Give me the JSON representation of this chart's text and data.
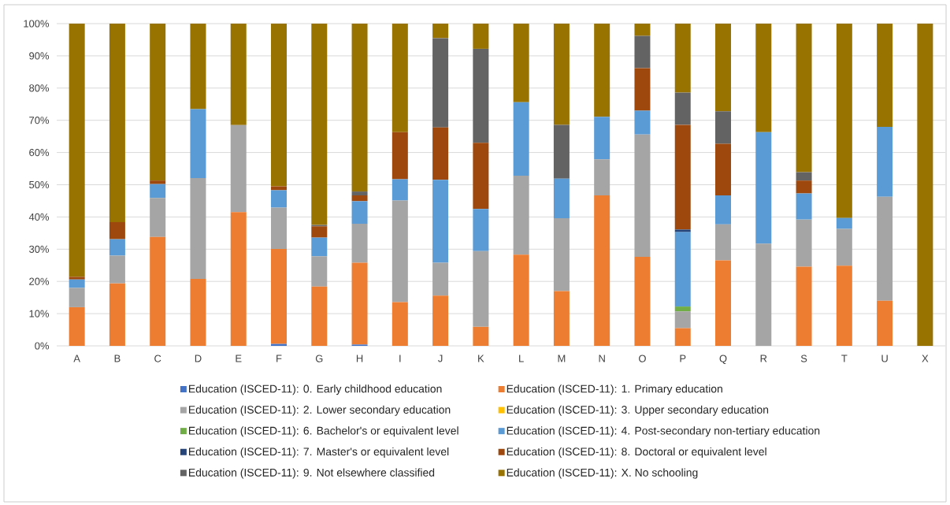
{
  "chart_data": {
    "type": "bar",
    "stacked": true,
    "categories": [
      "A",
      "B",
      "C",
      "D",
      "E",
      "F",
      "G",
      "H",
      "I",
      "J",
      "K",
      "L",
      "M",
      "N",
      "O",
      "P",
      "Q",
      "R",
      "S",
      "T",
      "U",
      "X"
    ],
    "ylim": [
      0,
      100
    ],
    "yticks": [
      {
        "value": 0,
        "label": "0%"
      },
      {
        "value": 10,
        "label": "10%"
      },
      {
        "value": 20,
        "label": "20%"
      },
      {
        "value": 30,
        "label": "30%"
      },
      {
        "value": 40,
        "label": "40%"
      },
      {
        "value": 50,
        "label": "50%"
      },
      {
        "value": 60,
        "label": "60%"
      },
      {
        "value": 70,
        "label": "70%"
      },
      {
        "value": 80,
        "label": "80%"
      },
      {
        "value": 90,
        "label": "90%"
      },
      {
        "value": 100,
        "label": "100%"
      }
    ],
    "grid": "y",
    "legend": "bottom",
    "series": [
      {
        "name": "Education (ISCED-11): 0. Early childhood education",
        "color": "#4472c4",
        "values": [
          0,
          0,
          0,
          0,
          0,
          0.6,
          0,
          0.4,
          0,
          0,
          0,
          0,
          0,
          0,
          0,
          0,
          0,
          0,
          0,
          0,
          0,
          0
        ]
      },
      {
        "name": "Education (ISCED-11): 1. Primary education",
        "color": "#ed7d31",
        "values": [
          12.0,
          19.4,
          33.8,
          20.8,
          41.5,
          29.5,
          18.4,
          25.4,
          13.6,
          15.6,
          5.9,
          28.3,
          17.0,
          46.7,
          27.6,
          5.5,
          26.5,
          0,
          24.6,
          24.9,
          14.0,
          0
        ]
      },
      {
        "name": "Education (ISCED-11): 2. Lower secondary education",
        "color": "#a5a5a5",
        "values": [
          6.0,
          8.6,
          12.1,
          31.3,
          27.0,
          12.8,
          9.4,
          12.1,
          31.5,
          10.2,
          23.5,
          24.5,
          22.6,
          11.2,
          38.0,
          5.2,
          11.2,
          31.7,
          14.6,
          11.4,
          32.3,
          0
        ]
      },
      {
        "name": "Education (ISCED-11): 3. Upper secondary education",
        "color": "#ffc000",
        "values": [
          0,
          0,
          0,
          0,
          0,
          0,
          0,
          0,
          0,
          0,
          0,
          0,
          0,
          0,
          0,
          0,
          0,
          0,
          0,
          0,
          0,
          0
        ]
      },
      {
        "name": "Education (ISCED-11): 6. Bachelor's or equivalent level",
        "color": "#70ad47",
        "values": [
          0,
          0,
          0,
          0,
          0,
          0,
          0,
          0,
          0,
          0,
          0,
          0,
          0,
          0,
          0,
          1.5,
          0,
          0,
          0,
          0,
          0,
          0
        ]
      },
      {
        "name": "Education (ISCED-11): 4. Post-secondary non-tertiary education",
        "color": "#5b9bd5",
        "values": [
          2.6,
          5.1,
          4.3,
          21.4,
          0,
          5.4,
          5.8,
          7.0,
          6.6,
          25.7,
          13.1,
          22.8,
          12.3,
          13.2,
          7.4,
          23.1,
          9.0,
          34.6,
          8.1,
          3.4,
          21.7,
          0
        ]
      },
      {
        "name": "Education (ISCED-11): 7. Master's or equivalent level",
        "color": "#264478",
        "values": [
          0,
          0,
          0,
          0,
          0,
          0,
          0,
          0,
          0,
          0,
          0,
          0,
          0,
          0,
          0,
          0.8,
          0,
          0,
          0,
          0,
          0,
          0
        ]
      },
      {
        "name": "Education (ISCED-11): 8. Doctoral or equivalent level",
        "color": "#9e480e",
        "values": [
          0.8,
          5.3,
          1.1,
          0,
          0,
          1.2,
          3.5,
          1.8,
          14.6,
          16.3,
          20.5,
          0,
          0,
          0,
          13.2,
          32.5,
          16.0,
          0,
          4.0,
          0,
          0,
          0
        ]
      },
      {
        "name": "Education (ISCED-11): 9. Not elsewhere classified",
        "color": "#636363",
        "values": [
          0,
          0,
          0,
          0,
          0,
          0,
          0.4,
          1.2,
          0,
          27.7,
          29.2,
          0,
          16.7,
          0,
          10.0,
          10.0,
          10.1,
          0,
          2.6,
          0,
          0,
          0
        ]
      },
      {
        "name": "Education (ISCED-11): X. No schooling",
        "color": "#997300",
        "values": [
          78.6,
          61.6,
          48.7,
          26.5,
          31.5,
          50.5,
          62.5,
          52.1,
          33.7,
          4.5,
          7.8,
          24.4,
          31.4,
          28.9,
          3.8,
          21.4,
          27.2,
          33.7,
          46.1,
          60.3,
          32.0,
          100
        ]
      }
    ]
  }
}
